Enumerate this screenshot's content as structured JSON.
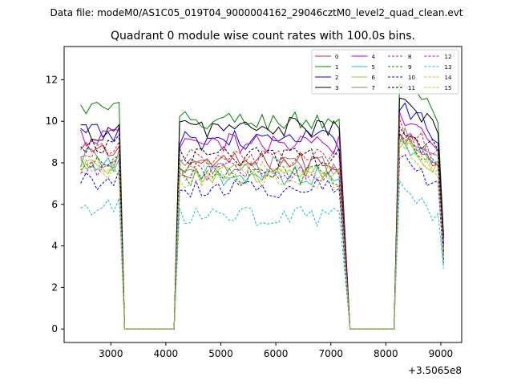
{
  "figure": {
    "suptitle": "Data file: modeM0/AS1C05_019T04_9000004162_29046cztM0_level2_quad_clean.evt"
  },
  "chart_data": {
    "type": "line",
    "title": "Quadrant 0 module wise count rates with 100.0s bins.",
    "xlabel": "",
    "ylabel": "",
    "x_offset_label": "+3.5065e8",
    "xlim": [
      2150,
      9380
    ],
    "ylim": [
      -0.65,
      13.6
    ],
    "xticks": [
      3000,
      4000,
      5000,
      6000,
      7000,
      8000,
      9000
    ],
    "yticks": [
      0,
      2,
      4,
      6,
      8,
      10,
      12
    ],
    "grid": false,
    "legend": {
      "placement": "top-right",
      "columns": 4
    },
    "segments": [
      {
        "start": 2450,
        "end": 3150,
        "active": true
      },
      {
        "start": 3250,
        "end": 4150,
        "active": false
      },
      {
        "start": 4250,
        "end": 7150,
        "active": true
      },
      {
        "start": 7350,
        "end": 8150,
        "active": false
      },
      {
        "start": 8250,
        "end": 8950,
        "active": true
      }
    ],
    "series": [
      {
        "name": "0",
        "color": "#d62728",
        "dash": "solid",
        "high_level": 9.5,
        "mid_level": 8.0,
        "low_level": 8.5
      },
      {
        "name": "1",
        "color": "#008000",
        "dash": "solid",
        "high_level": 12.1,
        "mid_level": 10.0,
        "low_level": 10.6
      },
      {
        "name": "2",
        "color": "#0000ff",
        "dash": "solid",
        "high_level": 11.0,
        "mid_level": 9.1,
        "low_level": 9.4
      },
      {
        "name": "3",
        "color": "#000000",
        "dash": "solid",
        "high_level": 10.8,
        "mid_level": 9.7,
        "low_level": 9.5
      },
      {
        "name": "4",
        "color": "#bf00bf",
        "dash": "solid",
        "high_level": 10.3,
        "mid_level": 8.9,
        "low_level": 9.2
      },
      {
        "name": "5",
        "color": "#17becf",
        "dash": "solid",
        "high_level": 9.2,
        "mid_level": 7.4,
        "low_level": 7.8
      },
      {
        "name": "6",
        "color": "#bcbd22",
        "dash": "solid",
        "high_level": 9.0,
        "mid_level": 7.5,
        "low_level": 7.9
      },
      {
        "name": "7",
        "color": "#7f7f7f",
        "dash": "solid",
        "high_level": 9.4,
        "mid_level": 7.8,
        "low_level": 8.2
      },
      {
        "name": "8",
        "color": "#d62728",
        "dash": "dashed",
        "high_level": 9.8,
        "mid_level": 8.2,
        "low_level": 8.6
      },
      {
        "name": "9",
        "color": "#008000",
        "dash": "dashed",
        "high_level": 9.3,
        "mid_level": 7.4,
        "low_level": 7.9
      },
      {
        "name": "10",
        "color": "#0000ff",
        "dash": "dashed",
        "high_level": 8.3,
        "mid_level": 6.8,
        "low_level": 7.2
      },
      {
        "name": "11",
        "color": "#000000",
        "dash": "dashed",
        "high_level": 10.0,
        "mid_level": 8.3,
        "low_level": 8.9
      },
      {
        "name": "12",
        "color": "#bf00bf",
        "dash": "dashed",
        "high_level": 9.6,
        "mid_level": 7.6,
        "low_level": 7.6
      },
      {
        "name": "13",
        "color": "#17becf",
        "dash": "dashed",
        "high_level": 6.8,
        "mid_level": 5.4,
        "low_level": 5.8
      },
      {
        "name": "14",
        "color": "#bcbd22",
        "dash": "dashed",
        "high_level": 9.0,
        "mid_level": 7.2,
        "low_level": 7.7
      },
      {
        "name": "15",
        "color": "#9acd32",
        "dash": "dashed",
        "high_level": 9.2,
        "mid_level": 7.6,
        "low_level": 8.0
      }
    ]
  }
}
